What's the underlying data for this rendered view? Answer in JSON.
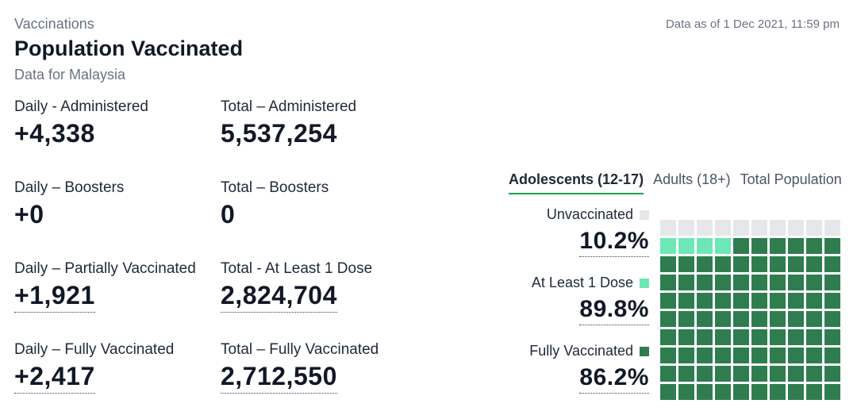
{
  "header": {
    "section": "Vaccinations",
    "title": "Population Vaccinated",
    "subtitle": "Data for Malaysia",
    "timestamp": "Data as of 1 Dec 2021, 11:59 pm"
  },
  "stats": [
    {
      "label": "Daily - Administered",
      "value": "+4,338"
    },
    {
      "label": "Total – Administered",
      "value": "5,537,254"
    },
    {
      "label": "Daily – Boosters",
      "value": "+0"
    },
    {
      "label": "Total – Boosters",
      "value": "0"
    },
    {
      "label": "Daily – Partially Vaccinated",
      "value": "+1,921"
    },
    {
      "label": "Total - At Least 1 Dose",
      "value": "2,824,704"
    },
    {
      "label": "Daily – Fully Vaccinated",
      "value": "+2,417"
    },
    {
      "label": "Total – Fully Vaccinated",
      "value": "2,712,550"
    }
  ],
  "tabs": [
    {
      "label": "Adolescents (12-17)",
      "active": true
    },
    {
      "label": "Adults (18+)",
      "active": false
    },
    {
      "label": "Total Population",
      "active": false
    }
  ],
  "colors": {
    "unvaccinated": "#e5e7eb",
    "at_least_one_dose": "#6ee7b7",
    "fully_vaccinated": "#2f7d4f",
    "tab_underline": "#16a34a"
  },
  "chart_data": {
    "type": "waffle",
    "total_cells": 100,
    "series": [
      {
        "name": "Unvaccinated",
        "value": 10.2,
        "label": "10.2%"
      },
      {
        "name": "At Least 1 Dose",
        "value": 89.8,
        "label": "89.8%"
      },
      {
        "name": "Fully Vaccinated",
        "value": 86.2,
        "label": "86.2%"
      }
    ]
  }
}
